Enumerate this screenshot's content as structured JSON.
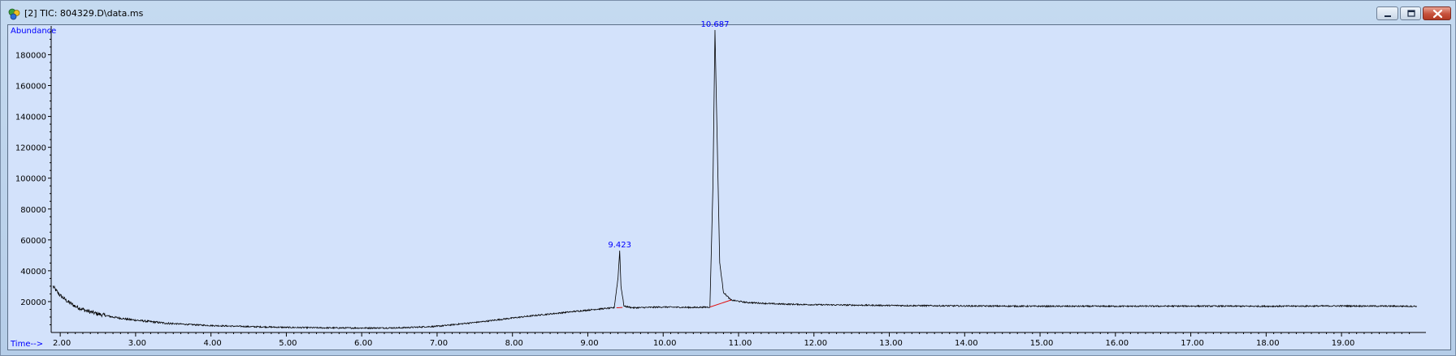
{
  "window": {
    "title": "[2] TIC: 804329.D\\data.ms",
    "icon": "chemstation-app-icon",
    "colors": {
      "plot_bg": "#d3e2fb",
      "label_blue": "#0000ff",
      "trace": "#000000",
      "baseline": "#e01010"
    }
  },
  "chart_data": {
    "type": "line",
    "ylabel": "Abundance",
    "xlabel": "Time-->",
    "xlim": [
      1.88,
      20.12
    ],
    "ylim": [
      0,
      196000
    ],
    "x_ticks": [
      "2.00",
      "3.00",
      "4.00",
      "5.00",
      "6.00",
      "7.00",
      "8.00",
      "9.00",
      "10.00",
      "11.00",
      "12.00",
      "13.00",
      "14.00",
      "15.00",
      "16.00",
      "17.00",
      "18.00",
      "19.00"
    ],
    "y_ticks": [
      "20000",
      "40000",
      "60000",
      "80000",
      "100000",
      "120000",
      "140000",
      "160000",
      "180000"
    ],
    "grid": false,
    "series": [
      {
        "x": [
          1.9,
          1.95,
          2.0,
          2.1,
          2.2,
          2.35,
          2.5,
          2.7,
          2.9,
          3.1,
          3.4,
          3.7,
          4.0,
          4.5,
          5.0,
          5.5,
          6.0,
          6.5,
          7.0,
          7.3,
          7.6,
          7.9,
          8.2,
          8.5,
          8.8,
          9.1,
          9.35,
          9.4,
          9.423,
          9.44,
          9.48,
          9.6,
          10.0,
          10.4,
          10.62,
          10.66,
          10.687,
          10.71,
          10.75,
          10.8,
          10.9,
          11.1,
          11.5,
          12.0,
          13.0,
          14.0,
          15.0,
          16.0,
          17.0,
          18.0,
          19.0,
          20.0
        ],
        "y": [
          30000,
          27000,
          24000,
          20000,
          17000,
          14000,
          12000,
          10000,
          8500,
          7500,
          6000,
          5200,
          4500,
          3800,
          3300,
          3000,
          2900,
          3000,
          4000,
          5500,
          7000,
          8800,
          10500,
          12000,
          13500,
          15000,
          16000,
          35000,
          53000,
          30000,
          17000,
          16000,
          16500,
          16200,
          16500,
          95000,
          196000,
          140000,
          45000,
          26000,
          21000,
          19500,
          18500,
          18000,
          17500,
          17200,
          17000,
          17000,
          17100,
          17000,
          17200,
          17000
        ]
      }
    ],
    "annotations": [
      {
        "label": "9.423",
        "x": 9.423,
        "y": 53000
      },
      {
        "label": "10.687",
        "x": 10.687,
        "y": 196000
      }
    ],
    "integration_baselines": [
      {
        "x": [
          9.38,
          9.46
        ],
        "y": [
          16000,
          16200
        ]
      },
      {
        "x": [
          10.62,
          10.9
        ],
        "y": [
          16500,
          21000
        ]
      }
    ]
  }
}
